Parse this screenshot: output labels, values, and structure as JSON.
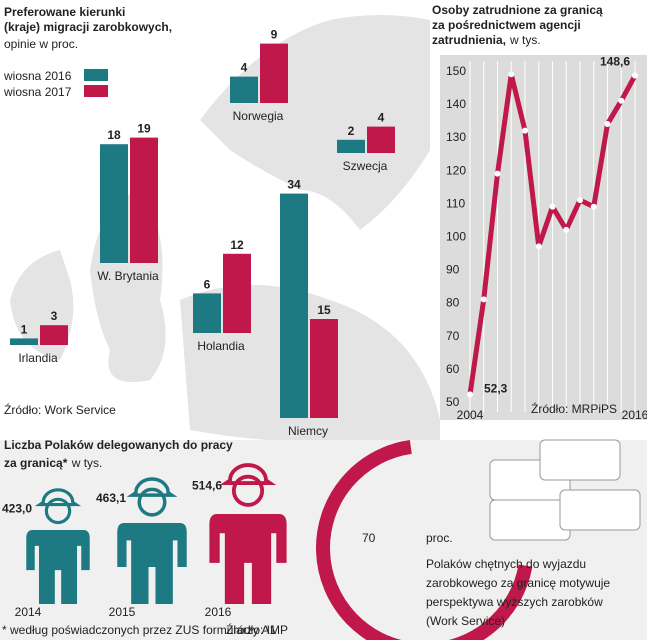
{
  "chart_data": [
    {
      "type": "bar",
      "title": [
        "Preferowane kierunki",
        "(kraje) migracji zarobkowych,"
      ],
      "subtitle": "opinie w proc.",
      "categories": [
        "Irlandia",
        "W. Brytania",
        "Holandia",
        "Niemcy",
        "Norwegia",
        "Szwecja"
      ],
      "series": [
        {
          "name": "wiosna 2016",
          "color": "#1e7a82",
          "values": [
            1,
            18,
            6,
            34,
            4,
            2
          ]
        },
        {
          "name": "wiosna 2017",
          "color": "#c0184a",
          "values": [
            3,
            19,
            12,
            15,
            9,
            4
          ]
        }
      ],
      "source": "Źródło: Work Service"
    },
    {
      "type": "line",
      "title": [
        "Osoby zatrudnione za granicą",
        "za pośrednictwem agencji",
        "zatrudnienia,"
      ],
      "subtitle": "w tys.",
      "x": [
        2004,
        2005,
        2006,
        2007,
        2008,
        2009,
        2010,
        2011,
        2012,
        2013,
        2014,
        2015,
        2016
      ],
      "values": [
        52.3,
        81,
        119,
        149,
        132,
        97,
        109,
        102,
        111,
        109,
        134,
        141,
        148.6
      ],
      "value_labels": [
        "52,3",
        null,
        null,
        null,
        null,
        null,
        null,
        null,
        null,
        null,
        null,
        null,
        "148,6"
      ],
      "color": "#c0184a",
      "xlim": [
        2004,
        2016
      ],
      "xticks": [
        2004,
        2016
      ],
      "ylim": [
        50,
        150
      ],
      "yticks": [
        50,
        60,
        70,
        80,
        90,
        100,
        110,
        120,
        130,
        140,
        150
      ],
      "source": "Źródło: MRPiPS"
    },
    {
      "type": "figure",
      "title": [
        "Liczba Polaków delegowanych do pracy",
        "za granicą*"
      ],
      "subtitle": "w tys.",
      "categories": [
        "2014",
        "2015",
        "2016"
      ],
      "values": [
        423.0,
        463.1,
        514.6
      ],
      "value_labels": [
        "423,0",
        "463,1",
        "514,6"
      ],
      "colors": [
        "#1e7a82",
        "#1e7a82",
        "#c0184a"
      ],
      "footnote": "* według poświadczonych przez ZUS  formularzy A1",
      "source": "Źródło: IMP"
    },
    {
      "type": "gauge",
      "value": 70,
      "unit": "proc.",
      "color": "#c0184a",
      "text": [
        "Polaków chętnych do wyjazdu",
        "zarobkowego za granicę motywuje",
        "perspektywa wyższych zarobków",
        "(Work Service)"
      ]
    }
  ]
}
